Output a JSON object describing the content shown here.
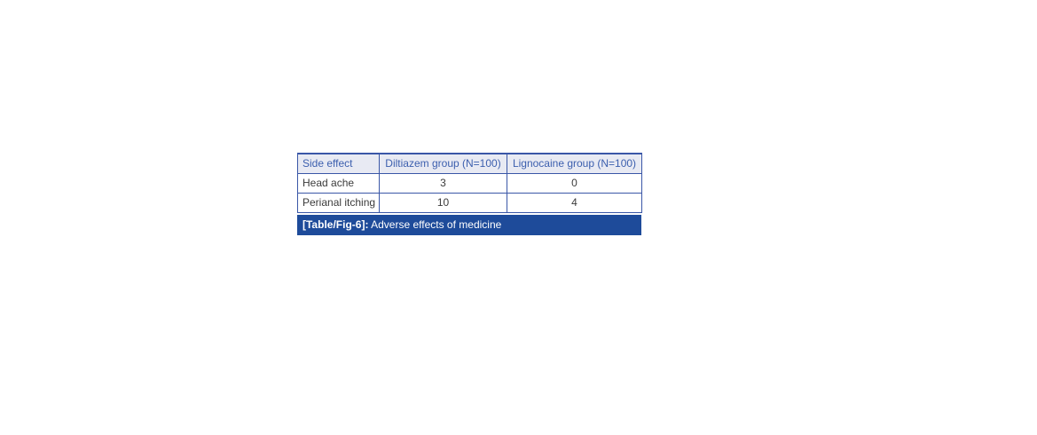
{
  "table": {
    "columns": [
      "Side effect",
      "Diltiazem group (N=100)",
      "Lignocaine group (N=100)"
    ],
    "rows": [
      [
        "Head ache",
        "3",
        "0"
      ],
      [
        "Perianal itching",
        "10",
        "4"
      ]
    ],
    "caption_label": "[Table/Fig-6]:",
    "caption_text": " Adverse effects of medicine"
  },
  "colors": {
    "border": "#3a57a7",
    "header_bg": "#e8eaf3",
    "header_text": "#3c5fae",
    "body_text": "#3b3b3b",
    "caption_bg": "#1e4b9a",
    "caption_text": "#ffffff",
    "page_bg": "#ffffff"
  },
  "chart_data": {
    "type": "table",
    "title": "[Table/Fig-6]: Adverse effects of medicine",
    "categories": [
      "Head ache",
      "Perianal itching"
    ],
    "series": [
      {
        "name": "Diltiazem group (N=100)",
        "values": [
          3,
          10
        ]
      },
      {
        "name": "Lignocaine group (N=100)",
        "values": [
          0,
          4
        ]
      }
    ]
  }
}
